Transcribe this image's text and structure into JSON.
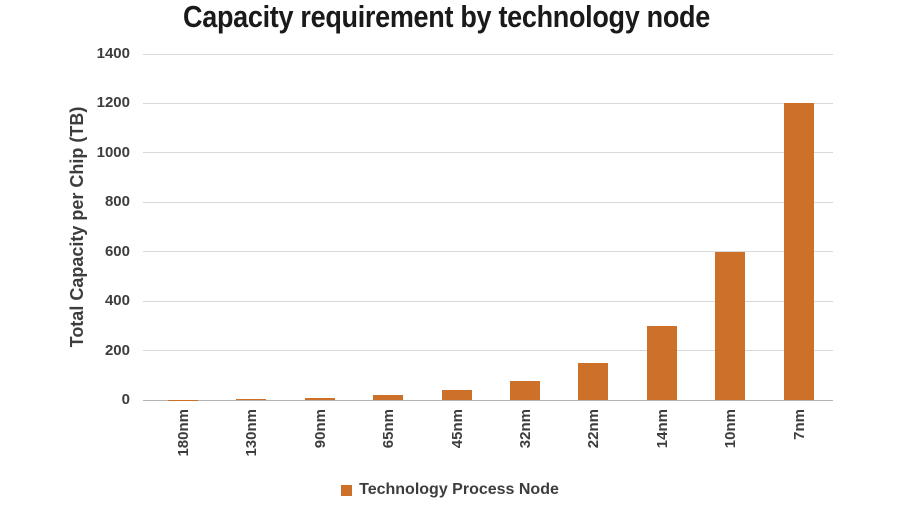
{
  "chart_data": {
    "type": "bar",
    "categories": [
      "180nm",
      "130nm",
      "90nm",
      "65nm",
      "45nm",
      "32nm",
      "22nm",
      "14nm",
      "10nm",
      "7nm"
    ],
    "values": [
      1,
      5,
      10,
      20,
      40,
      75,
      150,
      300,
      600,
      1200
    ],
    "title": "Capacity requirement by technology node",
    "xlabel": "",
    "ylabel": "Total Capacity per Chip (TB)",
    "ylim": [
      0,
      1400
    ],
    "ytick_step": 200,
    "grid": true,
    "legend_position": "bottom"
  },
  "legend": {
    "label": "Technology Process Node"
  },
  "colors": {
    "bar": "#cd7029",
    "grid": "#d9d9d9",
    "axis": "#b3b3b3",
    "text": "#3d3d3d",
    "title": "#1a1a1a"
  }
}
